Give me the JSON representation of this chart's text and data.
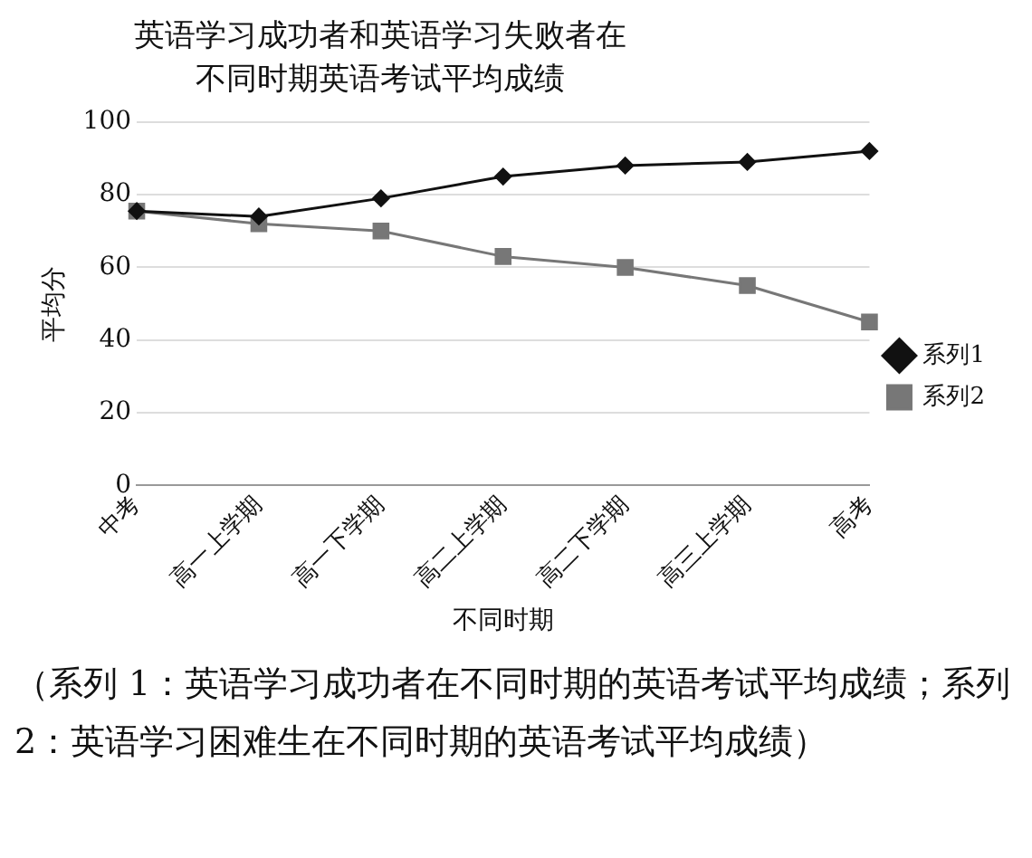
{
  "chart_data": {
    "type": "line",
    "title": "英语学习成功者和英语学习失败者在不同时期英语考试平均成绩",
    "xlabel": "不同时期",
    "ylabel": "平均分",
    "categories": [
      "中考",
      "高一上学期",
      "高一下学期",
      "高二上学期",
      "高二下学期",
      "高三上学期",
      "高考"
    ],
    "series": [
      {
        "name": "系列1",
        "color": "#111111",
        "marker": "diamond",
        "values": [
          75.5,
          74,
          79,
          85,
          88,
          89,
          92
        ]
      },
      {
        "name": "系列2",
        "color": "#777777",
        "marker": "square",
        "values": [
          75.5,
          72,
          70,
          63,
          60,
          55,
          45
        ]
      }
    ],
    "ylim": [
      0,
      100
    ],
    "yticks": [
      0,
      20,
      40,
      60,
      80,
      100
    ],
    "grid": "y",
    "legend": "right",
    "line_style": "solid",
    "annotations": [
      "（系列 1：英语学习成功者在不同时期的英语考试平均成绩；系列 2：英语学习困难生在不同时期的英语考试平均成绩）"
    ]
  }
}
